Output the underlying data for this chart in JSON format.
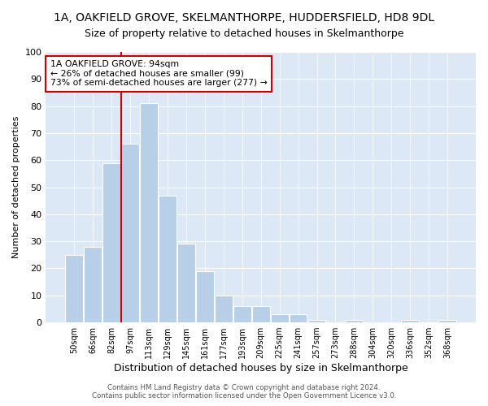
{
  "title": "1A, OAKFIELD GROVE, SKELMANTHORPE, HUDDERSFIELD, HD8 9DL",
  "subtitle": "Size of property relative to detached houses in Skelmanthorpe",
  "xlabel": "Distribution of detached houses by size in Skelmanthorpe",
  "ylabel": "Number of detached properties",
  "categories": [
    "50sqm",
    "66sqm",
    "82sqm",
    "97sqm",
    "113sqm",
    "129sqm",
    "145sqm",
    "161sqm",
    "177sqm",
    "193sqm",
    "209sqm",
    "225sqm",
    "241sqm",
    "257sqm",
    "273sqm",
    "288sqm",
    "304sqm",
    "320sqm",
    "336sqm",
    "352sqm",
    "368sqm"
  ],
  "values": [
    25,
    28,
    59,
    66,
    81,
    47,
    29,
    19,
    10,
    6,
    6,
    3,
    3,
    1,
    0,
    1,
    0,
    0,
    1,
    0,
    1
  ],
  "bar_color": "#b8cfe8",
  "vline_color": "#cc0000",
  "vline_x_index": 3,
  "annotation_text": "1A OAKFIELD GROVE: 94sqm\n← 26% of detached houses are smaller (99)\n73% of semi-detached houses are larger (277) →",
  "annotation_box_color": "#ffffff",
  "annotation_border_color": "#cc0000",
  "plot_bg_color": "#dce8f5",
  "ylim": [
    0,
    100
  ],
  "yticks": [
    0,
    10,
    20,
    30,
    40,
    50,
    60,
    70,
    80,
    90,
    100
  ],
  "footer1": "Contains HM Land Registry data © Crown copyright and database right 2024.",
  "footer2": "Contains public sector information licensed under the Open Government Licence v3.0.",
  "title_fontsize": 10,
  "bar_width": 0.95
}
